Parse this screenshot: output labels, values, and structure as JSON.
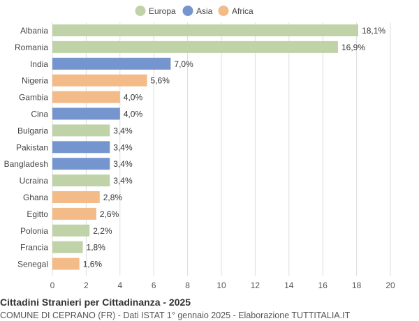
{
  "chart_data": {
    "type": "bar",
    "orientation": "horizontal",
    "title": "Cittadini Stranieri per Cittadinanza - 2025",
    "subtitle": "COMUNE DI CEPRANO (FR) - Dati ISTAT 1° gennaio 2025 - Elaborazione TUTTITALIA.IT",
    "legend": {
      "placement": "top-center",
      "entries": [
        {
          "name": "Europa",
          "color": "#c0d3a8"
        },
        {
          "name": "Asia",
          "color": "#7595cf"
        },
        {
          "name": "Africa",
          "color": "#f2bb88"
        }
      ]
    },
    "categories": [
      "Albania",
      "Romania",
      "India",
      "Nigeria",
      "Gambia",
      "Cina",
      "Bulgaria",
      "Pakistan",
      "Bangladesh",
      "Ucraina",
      "Ghana",
      "Egitto",
      "Polonia",
      "Francia",
      "Senegal"
    ],
    "values": [
      18.1,
      16.9,
      7.0,
      5.6,
      4.0,
      4.0,
      3.4,
      3.4,
      3.4,
      3.4,
      2.8,
      2.6,
      2.2,
      1.8,
      1.6
    ],
    "value_labels": [
      "18,1%",
      "16,9%",
      "7,0%",
      "5,6%",
      "4,0%",
      "4,0%",
      "3,4%",
      "3,4%",
      "3,4%",
      "3,4%",
      "2,8%",
      "2,6%",
      "2,2%",
      "1,8%",
      "1,6%"
    ],
    "groups": [
      "Europa",
      "Europa",
      "Asia",
      "Africa",
      "Africa",
      "Asia",
      "Europa",
      "Asia",
      "Asia",
      "Europa",
      "Africa",
      "Africa",
      "Europa",
      "Europa",
      "Africa"
    ],
    "xlim": [
      0,
      20
    ],
    "xticks": [
      0,
      2,
      4,
      6,
      8,
      10,
      12,
      14,
      16,
      18,
      20
    ],
    "grid": true,
    "xlabel": "",
    "ylabel": ""
  }
}
